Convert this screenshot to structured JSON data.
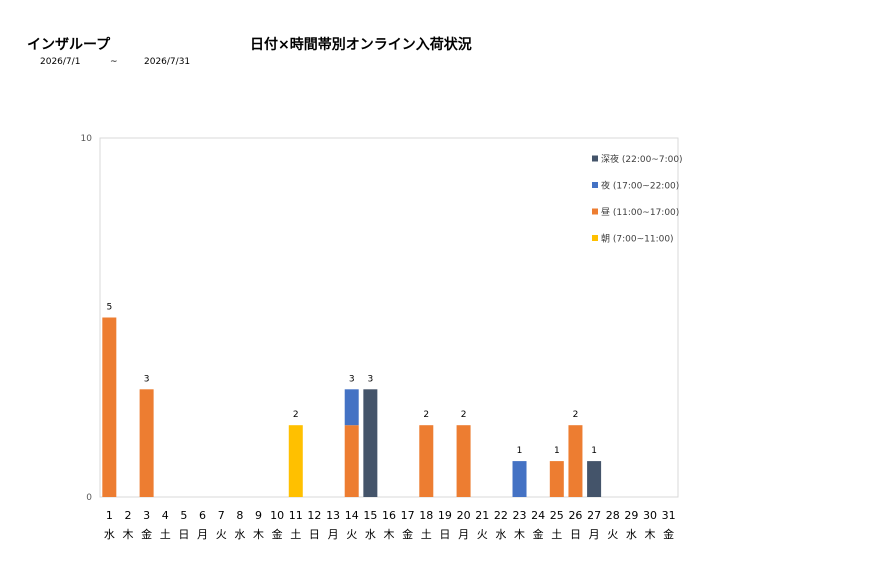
{
  "header": {
    "site_name": "インザループ",
    "chart_title": "日付×時間帯別オンライン入荷状況",
    "date_from": "2026/7/1",
    "date_sep": "~",
    "date_to": "2026/7/31"
  },
  "chart_data": {
    "type": "bar",
    "stacked": true,
    "title": "日付×時間帯別オンライン入荷状況",
    "xlabel": "",
    "ylabel": "",
    "ylim": [
      0,
      10
    ],
    "y_ticks": [
      "0",
      "10"
    ],
    "grid": false,
    "legend_position": "top-right",
    "categories": [
      "1",
      "2",
      "3",
      "4",
      "5",
      "6",
      "7",
      "8",
      "9",
      "10",
      "11",
      "12",
      "13",
      "14",
      "15",
      "16",
      "17",
      "18",
      "19",
      "20",
      "21",
      "22",
      "23",
      "24",
      "25",
      "26",
      "27",
      "28",
      "29",
      "30",
      "31"
    ],
    "weekdays": [
      "水",
      "木",
      "金",
      "土",
      "日",
      "月",
      "火",
      "水",
      "木",
      "金",
      "土",
      "日",
      "月",
      "火",
      "水",
      "木",
      "金",
      "土",
      "日",
      "月",
      "火",
      "水",
      "木",
      "金",
      "土",
      "日",
      "月",
      "火",
      "水",
      "木",
      "金"
    ],
    "totals": [
      5,
      0,
      3,
      0,
      0,
      0,
      0,
      0,
      0,
      0,
      2,
      0,
      0,
      3,
      3,
      0,
      0,
      2,
      0,
      2,
      0,
      0,
      1,
      0,
      1,
      2,
      1,
      0,
      0,
      0,
      0
    ],
    "series": [
      {
        "name": "朝 (7:00~11:00)",
        "color": "#FFC000",
        "values": [
          0,
          0,
          0,
          0,
          0,
          0,
          0,
          0,
          0,
          0,
          2,
          0,
          0,
          0,
          0,
          0,
          0,
          0,
          0,
          0,
          0,
          0,
          0,
          0,
          0,
          0,
          0,
          0,
          0,
          0,
          0
        ]
      },
      {
        "name": "昼 (11:00~17:00)",
        "color": "#ED7D31",
        "values": [
          5,
          0,
          3,
          0,
          0,
          0,
          0,
          0,
          0,
          0,
          0,
          0,
          0,
          2,
          0,
          0,
          0,
          2,
          0,
          2,
          0,
          0,
          0,
          0,
          1,
          2,
          0,
          0,
          0,
          0,
          0
        ]
      },
      {
        "name": "夜 (17:00~22:00)",
        "color": "#4472C4",
        "values": [
          0,
          0,
          0,
          0,
          0,
          0,
          0,
          0,
          0,
          0,
          0,
          0,
          0,
          1,
          0,
          0,
          0,
          0,
          0,
          0,
          0,
          0,
          1,
          0,
          0,
          0,
          0,
          0,
          0,
          0,
          0
        ]
      },
      {
        "name": "深夜 (22:00~7:00)",
        "color": "#44546A",
        "values": [
          0,
          0,
          0,
          0,
          0,
          0,
          0,
          0,
          0,
          0,
          0,
          0,
          0,
          0,
          3,
          0,
          0,
          0,
          0,
          0,
          0,
          0,
          0,
          0,
          0,
          0,
          1,
          0,
          0,
          0,
          0
        ]
      }
    ],
    "legend_order": [
      "深夜 (22:00~7:00)",
      "夜 (17:00~22:00)",
      "昼 (11:00~17:00)",
      "朝 (7:00~11:00)"
    ]
  }
}
